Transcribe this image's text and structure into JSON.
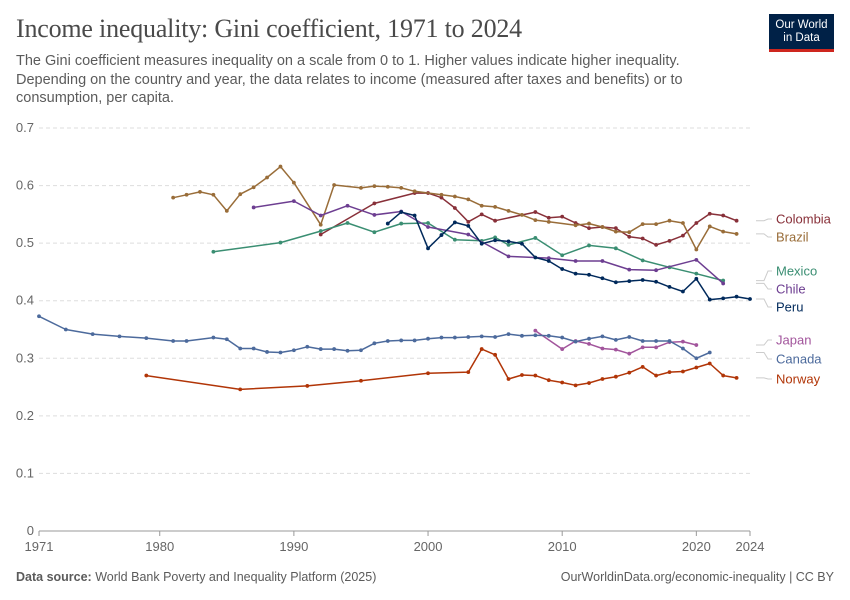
{
  "header": {
    "title": "Income inequality: Gini coefficient, 1971 to 2024",
    "subtitle": "The Gini coefficient measures inequality on a scale from 0 to 1. Higher values indicate higher inequality. Depending on the country and year, the data relates to income (measured after taxes and benefits) or to consumption, per capita."
  },
  "logo": {
    "line1": "Our World",
    "line2": "in Data",
    "bg_color": "#002147",
    "accent_color": "#ce261e"
  },
  "footer": {
    "source_label": "Data source:",
    "source_text": "World Bank Poverty and Inequality Platform (2025)",
    "right_text": "OurWorldinData.org/economic-inequality | CC BY"
  },
  "chart_data": {
    "type": "line",
    "title": "Income inequality: Gini coefficient, 1971 to 2024",
    "xlim": [
      1971,
      2024
    ],
    "ylim": [
      0,
      0.7
    ],
    "x_ticks": [
      1971,
      1980,
      1990,
      2000,
      2010,
      2020,
      2024
    ],
    "y_ticks": [
      0,
      0.1,
      0.2,
      0.3,
      0.4,
      0.5,
      0.6,
      0.7
    ],
    "y_tick_labels": [
      "0",
      "0.1",
      "0.2",
      "0.3",
      "0.4",
      "0.5",
      "0.6",
      "0.7"
    ],
    "grid": "horizontal dashed",
    "legend": "right, labels at line ends",
    "series": [
      {
        "name": "Colombia",
        "color": "#883039",
        "x": [
          1992,
          1996,
          1999,
          2000,
          2001,
          2002,
          2003,
          2004,
          2005,
          2008,
          2009,
          2010,
          2011,
          2012,
          2013,
          2014,
          2015,
          2016,
          2017,
          2018,
          2019,
          2020,
          2021,
          2022,
          2023
        ],
        "y": [
          0.515,
          0.569,
          0.587,
          0.587,
          0.579,
          0.561,
          0.537,
          0.55,
          0.539,
          0.554,
          0.544,
          0.546,
          0.535,
          0.526,
          0.528,
          0.526,
          0.511,
          0.508,
          0.497,
          0.504,
          0.513,
          0.535,
          0.551,
          0.548,
          0.539
        ]
      },
      {
        "name": "Brazil",
        "color": "#996d39",
        "x": [
          1981,
          1982,
          1983,
          1984,
          1985,
          1986,
          1987,
          1988,
          1989,
          1990,
          1992,
          1993,
          1995,
          1996,
          1997,
          1998,
          1999,
          2001,
          2002,
          2003,
          2004,
          2005,
          2006,
          2007,
          2008,
          2009,
          2011,
          2012,
          2013,
          2014,
          2015,
          2016,
          2017,
          2018,
          2019,
          2020,
          2021,
          2022,
          2023
        ],
        "y": [
          0.579,
          0.584,
          0.589,
          0.584,
          0.556,
          0.585,
          0.597,
          0.614,
          0.633,
          0.605,
          0.532,
          0.601,
          0.596,
          0.599,
          0.598,
          0.596,
          0.59,
          0.584,
          0.581,
          0.576,
          0.565,
          0.563,
          0.556,
          0.549,
          0.54,
          0.537,
          0.531,
          0.534,
          0.528,
          0.52,
          0.519,
          0.533,
          0.533,
          0.539,
          0.535,
          0.489,
          0.529,
          0.52,
          0.516
        ]
      },
      {
        "name": "Mexico",
        "color": "#3a8e72",
        "x": [
          1984,
          1989,
          1992,
          1994,
          1996,
          1998,
          2000,
          2002,
          2004,
          2005,
          2006,
          2008,
          2010,
          2012,
          2014,
          2016,
          2018,
          2020,
          2022
        ],
        "y": [
          0.485,
          0.501,
          0.521,
          0.535,
          0.519,
          0.534,
          0.535,
          0.506,
          0.504,
          0.51,
          0.497,
          0.509,
          0.479,
          0.496,
          0.491,
          0.47,
          0.458,
          0.447,
          0.435
        ]
      },
      {
        "name": "Chile",
        "color": "#6d3e91",
        "x": [
          1987,
          1990,
          1992,
          1994,
          1996,
          1998,
          2000,
          2003,
          2006,
          2009,
          2011,
          2013,
          2015,
          2017,
          2020,
          2022
        ],
        "y": [
          0.562,
          0.573,
          0.548,
          0.565,
          0.549,
          0.555,
          0.528,
          0.515,
          0.477,
          0.474,
          0.469,
          0.469,
          0.454,
          0.453,
          0.471,
          0.43
        ]
      },
      {
        "name": "Peru",
        "color": "#00295b",
        "x": [
          1997,
          1998,
          1999,
          2000,
          2001,
          2002,
          2003,
          2004,
          2005,
          2006,
          2007,
          2008,
          2009,
          2010,
          2011,
          2012,
          2013,
          2014,
          2015,
          2016,
          2017,
          2018,
          2019,
          2020,
          2021,
          2022,
          2023,
          2024
        ],
        "y": [
          0.534,
          0.554,
          0.548,
          0.491,
          0.514,
          0.536,
          0.53,
          0.499,
          0.505,
          0.503,
          0.499,
          0.475,
          0.469,
          0.455,
          0.447,
          0.445,
          0.439,
          0.432,
          0.434,
          0.436,
          0.433,
          0.424,
          0.416,
          0.438,
          0.402,
          0.404,
          0.407,
          0.403
        ]
      },
      {
        "name": "Japan",
        "color": "#a2559c",
        "x": [
          2008,
          2010,
          2011,
          2012,
          2013,
          2014,
          2015,
          2016,
          2017,
          2018,
          2019,
          2020
        ],
        "y": [
          0.348,
          0.316,
          0.33,
          0.325,
          0.317,
          0.315,
          0.308,
          0.319,
          0.319,
          0.328,
          0.329,
          0.323
        ]
      },
      {
        "name": "Canada",
        "color": "#4c6a9c",
        "x": [
          1971,
          1973,
          1975,
          1977,
          1979,
          1981,
          1982,
          1984,
          1985,
          1986,
          1987,
          1988,
          1989,
          1990,
          1991,
          1992,
          1993,
          1994,
          1995,
          1996,
          1997,
          1998,
          1999,
          2000,
          2001,
          2002,
          2003,
          2004,
          2005,
          2006,
          2007,
          2008,
          2009,
          2010,
          2011,
          2012,
          2013,
          2014,
          2015,
          2016,
          2017,
          2018,
          2019,
          2020,
          2021
        ],
        "y": [
          0.373,
          0.35,
          0.342,
          0.338,
          0.335,
          0.33,
          0.33,
          0.336,
          0.333,
          0.317,
          0.317,
          0.311,
          0.31,
          0.314,
          0.32,
          0.316,
          0.316,
          0.313,
          0.314,
          0.326,
          0.33,
          0.331,
          0.331,
          0.334,
          0.336,
          0.336,
          0.337,
          0.338,
          0.337,
          0.342,
          0.339,
          0.34,
          0.339,
          0.336,
          0.329,
          0.334,
          0.338,
          0.332,
          0.337,
          0.33,
          0.33,
          0.33,
          0.317,
          0.3,
          0.31
        ]
      },
      {
        "name": "Norway",
        "color": "#b13507",
        "x": [
          1979,
          1986,
          1991,
          1995,
          2000,
          2003,
          2004,
          2005,
          2006,
          2007,
          2008,
          2009,
          2010,
          2011,
          2012,
          2013,
          2014,
          2015,
          2016,
          2017,
          2018,
          2019,
          2020,
          2021,
          2022,
          2023
        ],
        "y": [
          0.27,
          0.246,
          0.252,
          0.261,
          0.274,
          0.276,
          0.316,
          0.306,
          0.264,
          0.271,
          0.27,
          0.262,
          0.258,
          0.253,
          0.257,
          0.264,
          0.268,
          0.275,
          0.285,
          0.27,
          0.276,
          0.277,
          0.284,
          0.291,
          0.27,
          0.266
        ]
      }
    ]
  }
}
